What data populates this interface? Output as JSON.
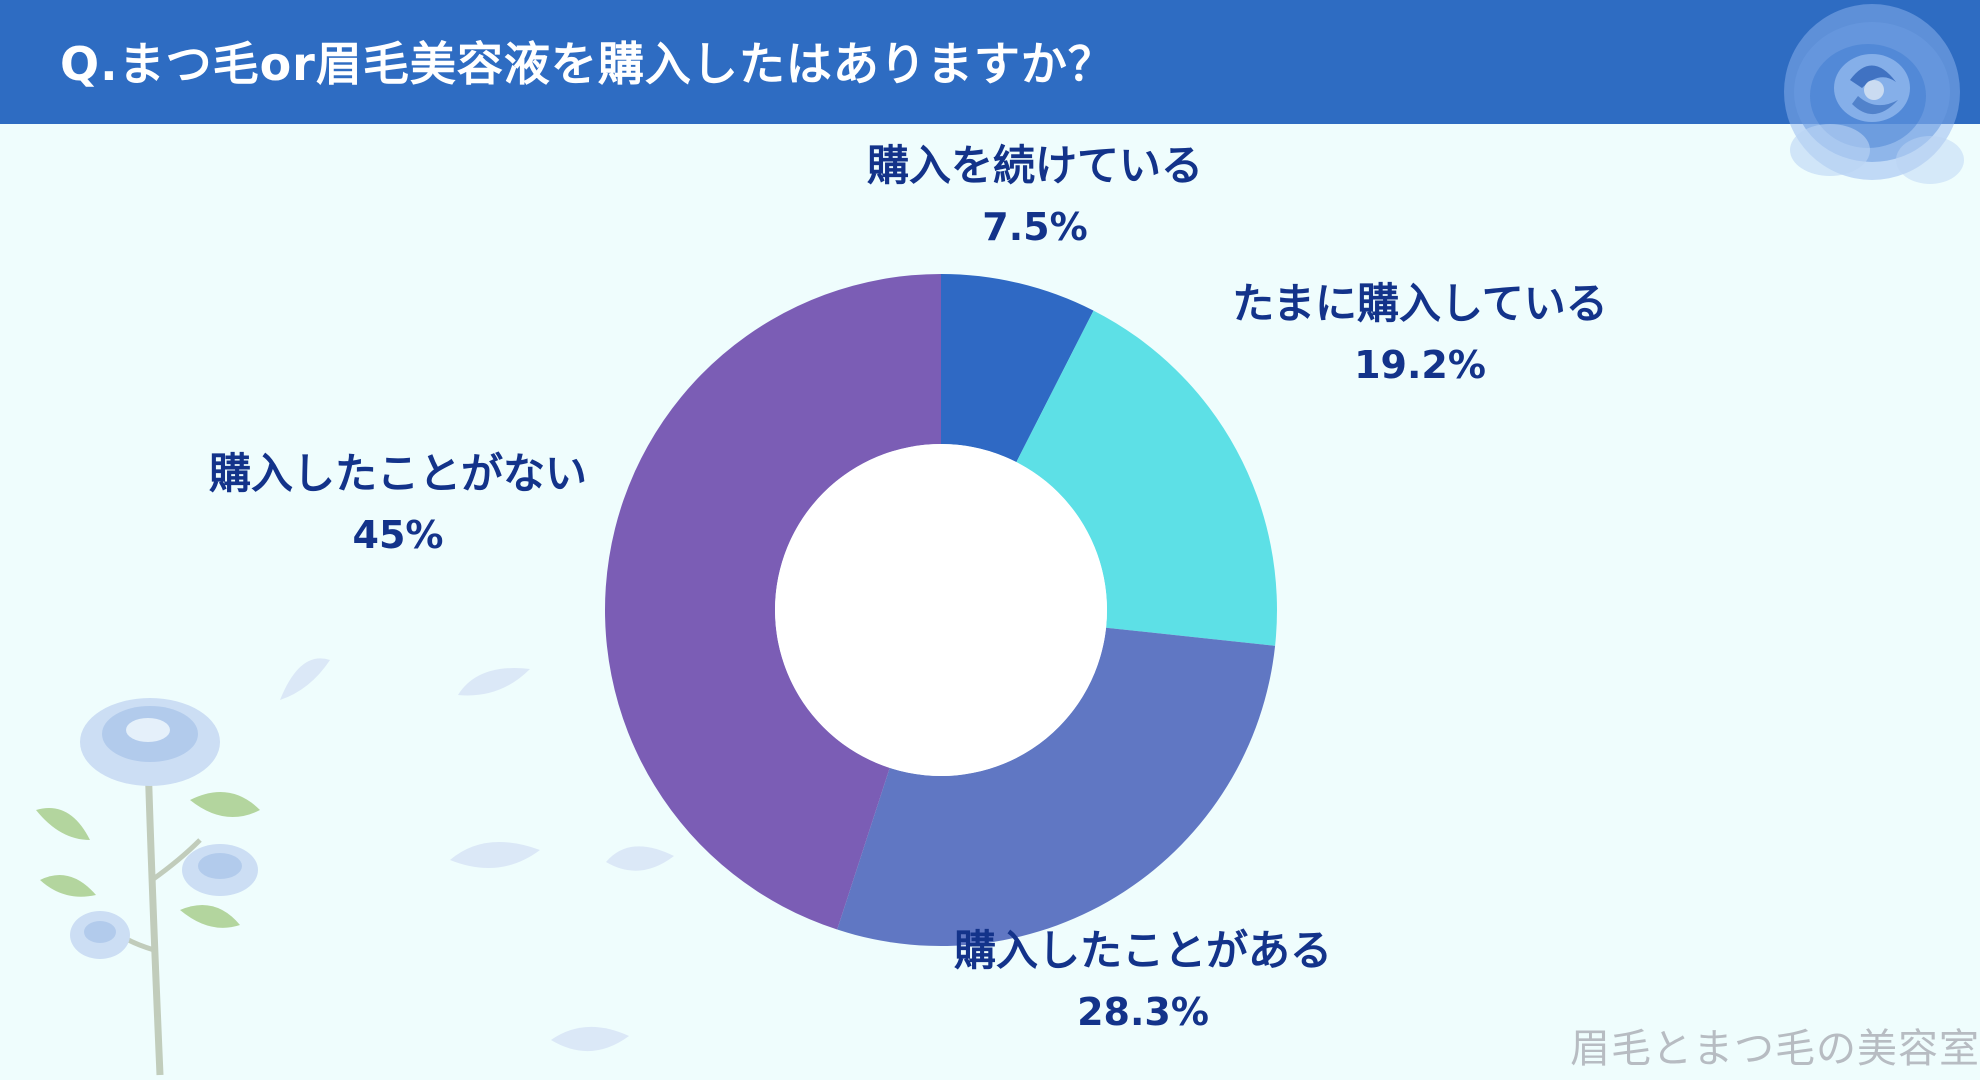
{
  "header": {
    "title": "Q.まつ毛or眉毛美容液を購入したはありますか？"
  },
  "watermark": "眉毛とまつ毛の美容室",
  "chart_data": {
    "type": "pie",
    "title": "Q.まつ毛or眉毛美容液を購入したはありますか？",
    "donut": true,
    "start": "top",
    "direction": "clockwise",
    "slices": [
      {
        "label": "購入を続けている",
        "value": 7.5,
        "value_label": "7.5%",
        "color": "#2f69c4"
      },
      {
        "label": "たまに購入している",
        "value": 19.2,
        "value_label": "19.2%",
        "color": "#5de0e6"
      },
      {
        "label": "購入したことがある",
        "value": 28.3,
        "value_label": "28.3%",
        "color": "#6077c3"
      },
      {
        "label": "購入したことがない",
        "value": 45,
        "value_label": "45%",
        "color": "#7b5db5"
      }
    ]
  },
  "decoration": {
    "rose_color": "#6f9fe3",
    "petal_color": "#dbe8f7",
    "leaf_color": "#a9cf8e",
    "icons": [
      "blue-rose-icon",
      "rose-branch-icon",
      "petal-icon"
    ]
  }
}
